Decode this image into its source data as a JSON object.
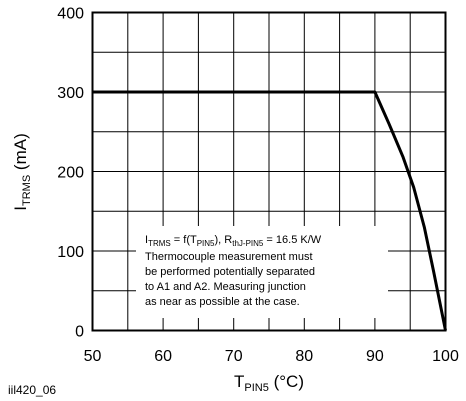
{
  "chart_data": {
    "type": "line",
    "xlim": [
      50,
      100
    ],
    "ylim": [
      0,
      400
    ],
    "x_ticks": [
      50,
      60,
      70,
      80,
      90,
      100
    ],
    "y_ticks": [
      0,
      100,
      200,
      300,
      400
    ],
    "xlabel": {
      "main": "T",
      "sub": "PIN5",
      "rest": " (°C)"
    },
    "ylabel": {
      "main": "I",
      "sub": "TRMS",
      "rest": " (mA)"
    },
    "grid": true,
    "grid_columns": 10,
    "grid_rows": 8,
    "series": [
      {
        "x": [
          50,
          90,
          92,
          94,
          95.5,
          97,
          98.3,
          99.2,
          100
        ],
        "y": [
          300,
          300,
          260,
          218,
          180,
          130,
          75,
          35,
          0
        ]
      }
    ],
    "annotation": {
      "formula": {
        "i": "I",
        "i_sub": "TRMS",
        "f": " = f(T",
        "t_sub": "PIN5",
        "mid": "), R",
        "r_sub": "thJ-PIN5",
        "end": " = 16.5 K/W"
      },
      "lines": [
        "Thermocouple measurement must",
        "be performed potentially separated",
        "to A1 and A2. Measuring junction",
        "as near as possible at the case."
      ]
    },
    "figure_id": "iil420_06"
  }
}
